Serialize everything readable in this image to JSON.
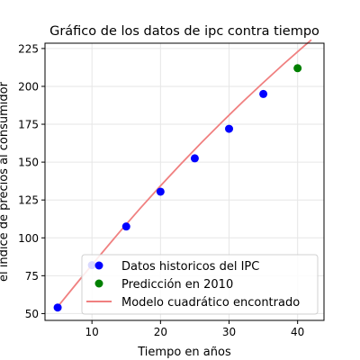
{
  "chart_data": {
    "type": "scatter",
    "title": "Gráfico de los datos de ipc contra tiempo",
    "xlabel": "Tiempo en años",
    "ylabel": "el índice de precios al consumidor",
    "xlim": [
      3.15,
      43.85
    ],
    "ylim": [
      45.5,
      228.5
    ],
    "xticks": [
      10,
      20,
      30,
      40
    ],
    "yticks": [
      50,
      75,
      100,
      125,
      150,
      175,
      200,
      225
    ],
    "grid": true,
    "legend_position": "lower-right",
    "series": [
      {
        "name": "Datos historicos del IPC",
        "kind": "scatter",
        "color": "#0000ff",
        "x": [
          5,
          10,
          15,
          20,
          25,
          30,
          35
        ],
        "y": [
          54,
          82,
          107.5,
          130.5,
          152.5,
          172,
          195
        ]
      },
      {
        "name": "Predicción en 2010",
        "kind": "scatter",
        "color": "#008000",
        "x": [
          40
        ],
        "y": [
          212
        ]
      },
      {
        "name": "Modelo cuadrático encontrado",
        "kind": "line",
        "color": "#f08080",
        "x": [
          5,
          8,
          11,
          14,
          17,
          20,
          23,
          26,
          29,
          32,
          35,
          38,
          41,
          42
        ],
        "y": [
          54.5,
          71.2,
          87.6,
          103.7,
          119.3,
          134.3,
          148.9,
          163.0,
          176.6,
          189.8,
          202.5,
          214.9,
          226.8,
          230.7
        ]
      }
    ]
  }
}
